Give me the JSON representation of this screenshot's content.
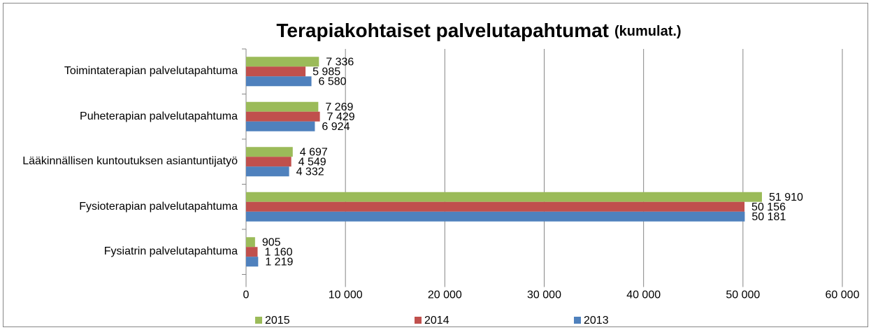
{
  "chart_data": {
    "type": "hbar",
    "title": "Terapiakohtaiset palvelutapahtumat",
    "title_suffix": "(kumulat.)",
    "categories": [
      "Toimintaterapian palvelutapahtuma",
      "Puheterapian palvelutapahtuma",
      "Lääkinnällisen kuntoutuksen asiantuntijatyö",
      "Fysioterapian palvelutapahtuma",
      "Fysiatrin palvelutapahtuma"
    ],
    "series": [
      {
        "name": "2015",
        "color": "#9bbb59",
        "values": [
          7336,
          7269,
          4697,
          51910,
          905
        ],
        "value_labels": [
          "7 336",
          "7 269",
          "4 697",
          "51 910",
          "905"
        ]
      },
      {
        "name": "2014",
        "color": "#c0504d",
        "values": [
          5985,
          7429,
          4549,
          50156,
          1160
        ],
        "value_labels": [
          "5 985",
          "7 429",
          "4 549",
          "50 156",
          "1 160"
        ]
      },
      {
        "name": "2013",
        "color": "#4f81bd",
        "values": [
          6580,
          6924,
          4332,
          50181,
          1219
        ],
        "value_labels": [
          "6 580",
          "6 924",
          "4 332",
          "50 181",
          "1 219"
        ]
      }
    ],
    "xlim": [
      0,
      60000
    ],
    "xticks": [
      0,
      {
        "value": 10000,
        "label": "10 000"
      },
      {
        "value": 20000,
        "label": "20 000"
      },
      {
        "value": 30000,
        "label": "30 000"
      },
      {
        "value": 40000,
        "label": "40 000"
      },
      {
        "value": 50000,
        "label": "50 000"
      },
      {
        "value": 60000,
        "label": "60 000"
      }
    ],
    "grid": true,
    "legend": "bottom"
  }
}
